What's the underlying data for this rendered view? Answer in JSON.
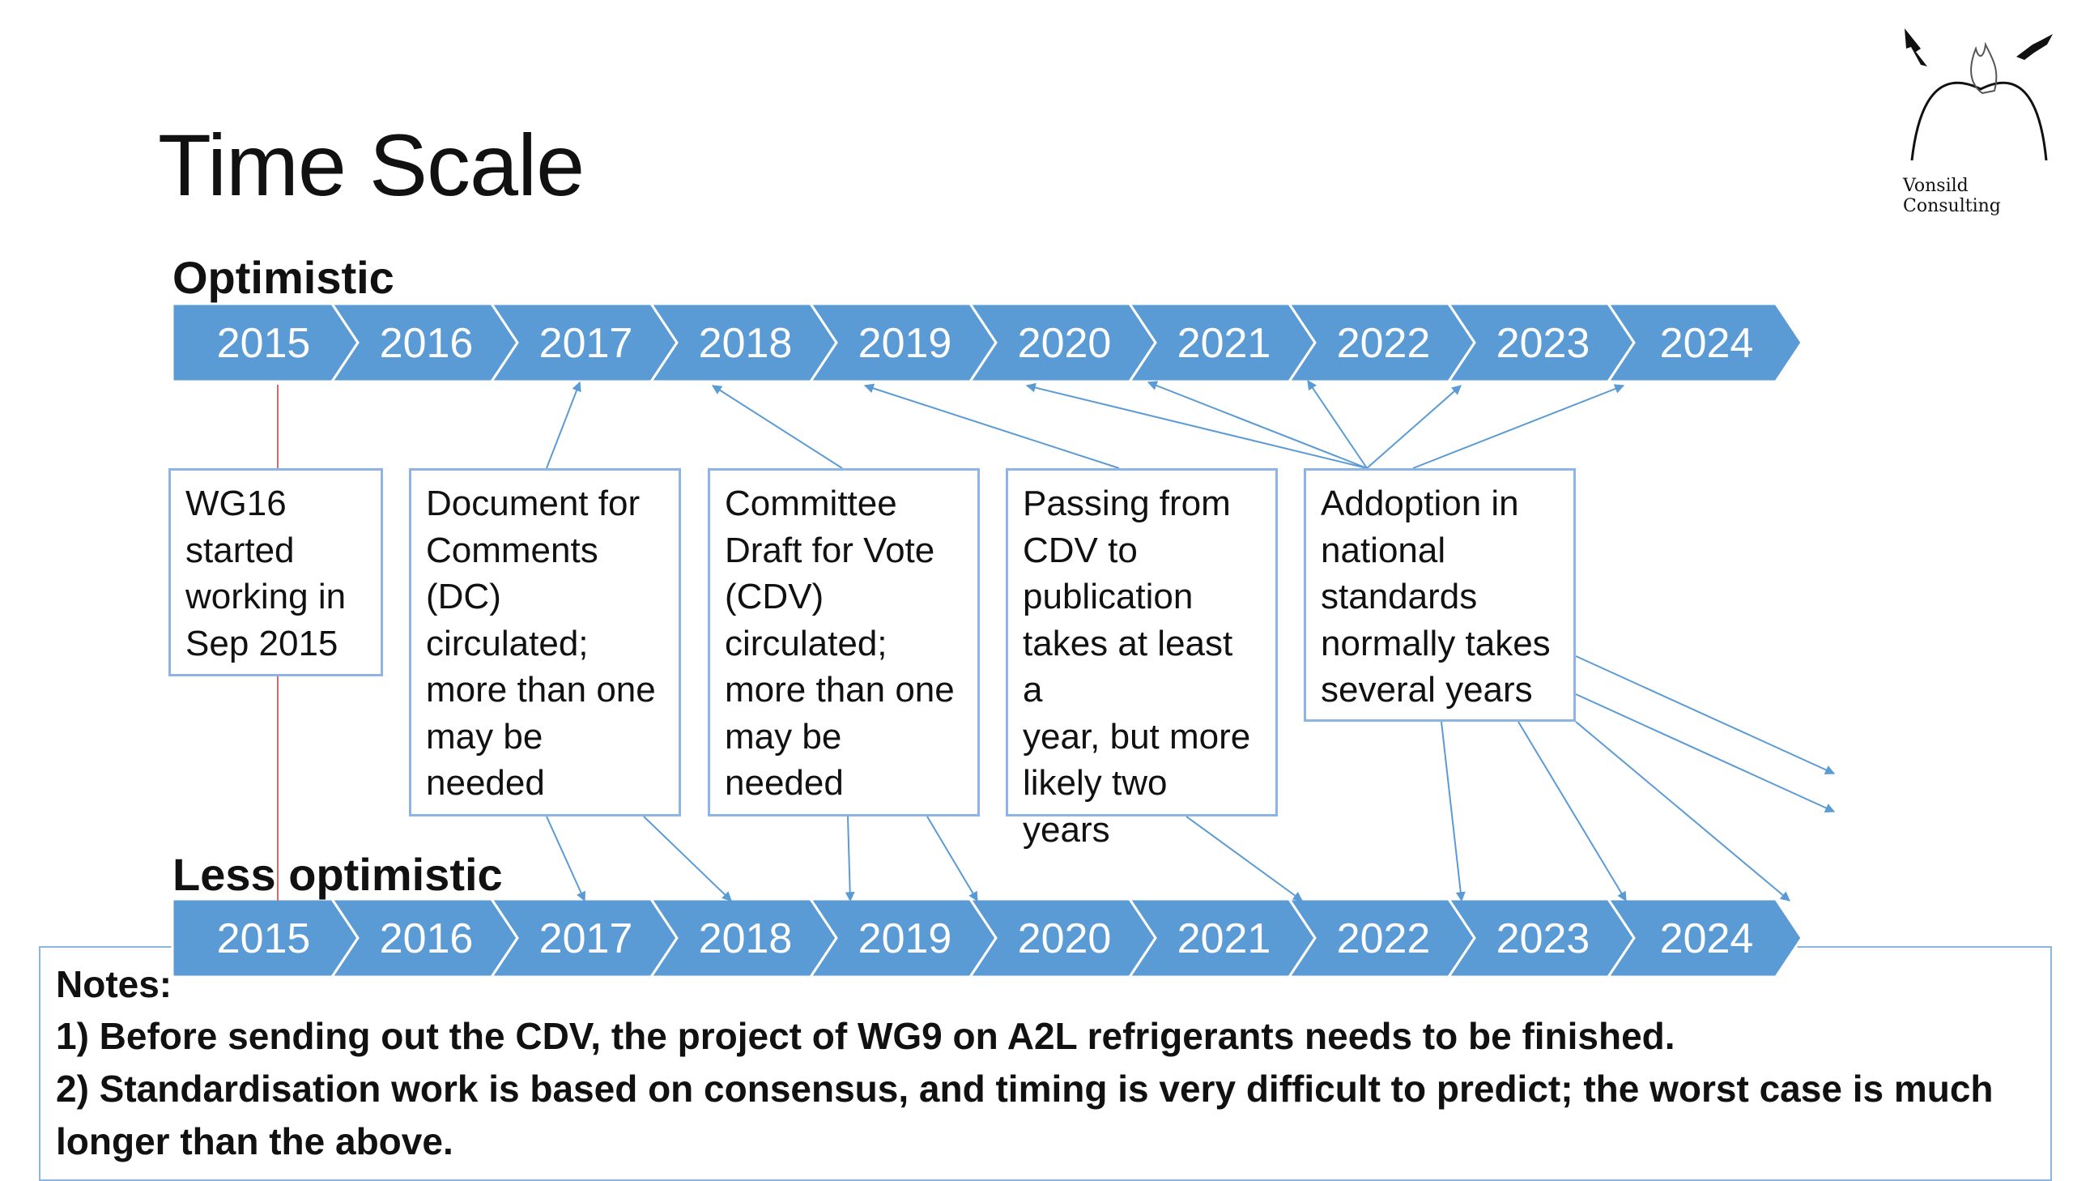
{
  "title": "Time Scale",
  "logo": {
    "name": "Vonsild Consulting",
    "icon": "birds-flame-arch-logo"
  },
  "optimistic": {
    "label": "Optimistic",
    "years": [
      "2015",
      "2016",
      "2017",
      "2018",
      "2019",
      "2020",
      "2021",
      "2022",
      "2023",
      "2024"
    ]
  },
  "less_optimistic": {
    "label": "Less optimistic",
    "years": [
      "2015",
      "2016",
      "2017",
      "2018",
      "2019",
      "2020",
      "2021",
      "2022",
      "2023",
      "2024"
    ]
  },
  "boxes": [
    {
      "lines": [
        "WG16",
        "started",
        "working in",
        "Sep 2015"
      ]
    },
    {
      "lines": [
        "Document for",
        "Comments",
        "(DC)",
        "circulated;",
        "more than one",
        "may be",
        "needed"
      ]
    },
    {
      "lines": [
        "Committee",
        "Draft for Vote",
        "(CDV)",
        "circulated;",
        "more than one",
        "may be",
        "needed"
      ]
    },
    {
      "lines": [
        "Passing from",
        "CDV to",
        "publication",
        "takes at least a",
        "year, but more",
        "likely two",
        "years"
      ]
    },
    {
      "lines": [
        "Addoption in",
        "national",
        "standards",
        "normally takes",
        "several years"
      ]
    }
  ],
  "notes": {
    "heading": "Notes:",
    "lines": [
      "1) Before sending out the CDV, the project of WG9 on A2L refrigerants needs to be finished.",
      "2) Standardisation work is based on consensus, and timing is very difficult to predict; the worst case is much",
      "longer than the above."
    ]
  },
  "colors": {
    "chevron": "#5b9bd5",
    "chevron_text": "#ffffff",
    "arrow": "#5b9bd5",
    "box_border": "#8db4e2",
    "marker_line": "#e06666"
  }
}
